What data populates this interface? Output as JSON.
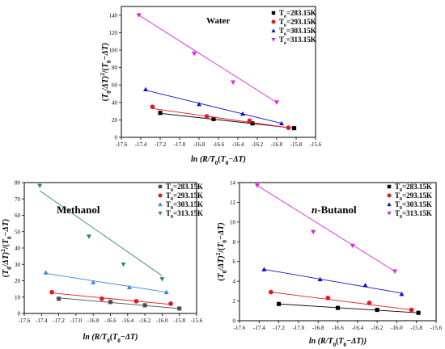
{
  "figure": {
    "panels": [
      "water",
      "methanol",
      "butanol"
    ]
  },
  "chart_data": [
    {
      "type": "scatter",
      "id": "water",
      "title": "Water",
      "xlabel": "ln (R/T0(T0−ΔT)",
      "ylabel": "(T0/ΔT)²/(T0−ΔT)",
      "xlim": [
        -17.6,
        -15.6
      ],
      "ylim": [
        0,
        150
      ],
      "x_ticks": [
        -17.6,
        -17.4,
        -17.2,
        -17.0,
        -16.8,
        -16.6,
        -16.4,
        -16.2,
        -16.0,
        -15.8,
        -15.6
      ],
      "x_tick_labels": [
        "-17.6",
        "-17.4",
        "-17.2",
        "-17.0",
        "-16.8",
        "-16.6",
        "-16.4",
        "-16.2",
        "-16.0",
        "-15.8",
        "-15.6"
      ],
      "y_ticks": [
        0,
        20,
        40,
        60,
        80,
        100,
        120,
        140
      ],
      "y_tick_labels": [
        "0",
        "20",
        "40",
        "60",
        "80",
        "100",
        "120",
        "140"
      ],
      "legend_position": "top-right",
      "grid": false,
      "series": [
        {
          "name": "T0=283.15K",
          "color": "#000000",
          "marker": "square",
          "x": [
            -17.2,
            -16.65,
            -16.25,
            -15.82
          ],
          "y": [
            28,
            21,
            16,
            10.5
          ],
          "fit": [
            [
              -17.2,
              27.5
            ],
            [
              -15.82,
              10.5
            ]
          ]
        },
        {
          "name": "T0=293.15K",
          "color": "#e8161c",
          "marker": "circle",
          "x": [
            -17.28,
            -16.72,
            -16.28,
            -15.88
          ],
          "y": [
            35,
            24,
            19,
            11
          ],
          "fit": [
            [
              -17.28,
              33
            ],
            [
              -15.88,
              11
            ]
          ]
        },
        {
          "name": "T0=303.15K",
          "color": "#1010d0",
          "marker": "triangle-up",
          "x": [
            -17.35,
            -16.8,
            -16.35,
            -15.95
          ],
          "y": [
            55,
            38,
            27,
            16
          ],
          "fit": [
            [
              -17.35,
              54
            ],
            [
              -15.95,
              16
            ]
          ]
        },
        {
          "name": "T0=313.15K",
          "color": "#e21ee2",
          "marker": "triangle-down",
          "x": [
            -17.42,
            -16.85,
            -16.45,
            -16.0
          ],
          "y": [
            140,
            96,
            63,
            40
          ],
          "fit": [
            [
              -17.42,
              140
            ],
            [
              -16.0,
              40
            ]
          ]
        }
      ]
    },
    {
      "type": "scatter",
      "id": "methanol",
      "title": "Methanol",
      "xlabel": "ln (R/T0(T0−ΔT)",
      "ylabel": "(T0/ΔT)²/(T0−ΔT)",
      "xlim": [
        -17.6,
        -15.6
      ],
      "ylim": [
        0,
        80
      ],
      "x_ticks": [
        -17.6,
        -17.4,
        -17.2,
        -17.0,
        -16.8,
        -16.6,
        -16.4,
        -16.2,
        -16.0,
        -15.8,
        -15.6
      ],
      "x_tick_labels": [
        "-17.6",
        "-17.4",
        "-17.2",
        "-17.0",
        "-16.8",
        "-16.6",
        "-16.4",
        "-16.2",
        "-16.0",
        "-15.8",
        "-15.6"
      ],
      "y_ticks": [
        0,
        10,
        20,
        30,
        40,
        50,
        60,
        70,
        80
      ],
      "y_tick_labels": [
        "0",
        "10",
        "20",
        "30",
        "40",
        "50",
        "60",
        "70",
        "80"
      ],
      "legend_position": "top-right",
      "grid": false,
      "series": [
        {
          "name": "T0=283.15K",
          "color": "#4d4d4d",
          "marker": "square",
          "x": [
            -17.2,
            -16.6,
            -16.2,
            -15.8
          ],
          "y": [
            9,
            7,
            5,
            3
          ],
          "fit": [
            [
              -17.2,
              9.5
            ],
            [
              -15.8,
              3
            ]
          ]
        },
        {
          "name": "T0=293.15K",
          "color": "#e8161c",
          "marker": "circle",
          "x": [
            -17.28,
            -16.7,
            -16.3,
            -15.9
          ],
          "y": [
            13,
            9,
            7.5,
            6
          ],
          "fit": [
            [
              -17.28,
              12.5
            ],
            [
              -15.9,
              5.5
            ]
          ]
        },
        {
          "name": "T0=303.15K",
          "color": "#3a87d6",
          "marker": "triangle-up",
          "x": [
            -17.35,
            -16.8,
            -16.38,
            -15.95
          ],
          "y": [
            25,
            19,
            16,
            13
          ],
          "fit": [
            [
              -17.35,
              24.5
            ],
            [
              -15.95,
              13
            ]
          ]
        },
        {
          "name": "T0=313.15K",
          "color": "#2e8b57",
          "marker": "triangle-down",
          "x": [
            -17.42,
            -16.85,
            -16.45,
            -16.0
          ],
          "y": [
            78,
            47,
            30,
            21
          ],
          "fit": [
            [
              -17.42,
              75
            ],
            [
              -16.0,
              23
            ]
          ]
        }
      ]
    },
    {
      "type": "scatter",
      "id": "butanol",
      "title": "n-Butanol",
      "xlabel": "ln (R/T0(T0−ΔT))",
      "ylabel": "(T0/ΔT)²/(T0−ΔT)",
      "xlim": [
        -17.6,
        -15.6
      ],
      "ylim": [
        0,
        14
      ],
      "x_ticks": [
        -17.6,
        -17.4,
        -17.2,
        -17.0,
        -16.8,
        -16.6,
        -16.4,
        -16.2,
        -16.0,
        -15.8,
        -15.6
      ],
      "x_tick_labels": [
        "-17.6",
        "-17.4",
        "-17.2",
        "-17.0",
        "-16.8",
        "-16.6",
        "-16.4",
        "-16.2",
        "-16.0",
        "-15.8",
        "-15.6"
      ],
      "y_ticks": [
        0,
        2,
        4,
        6,
        8,
        10,
        12,
        14
      ],
      "y_tick_labels": [
        "0",
        "2",
        "4",
        "6",
        "8",
        "10",
        "12",
        "14"
      ],
      "legend_position": "top-right",
      "grid": false,
      "series": [
        {
          "name": "T0=283.15K",
          "color": "#000000",
          "marker": "square",
          "x": [
            -17.2,
            -16.6,
            -16.2,
            -15.78
          ],
          "y": [
            1.7,
            1.3,
            1.1,
            0.8
          ],
          "fit": [
            [
              -17.2,
              1.7
            ],
            [
              -15.78,
              0.8
            ]
          ]
        },
        {
          "name": "T0=293.15K",
          "color": "#e8161c",
          "marker": "circle",
          "x": [
            -17.28,
            -16.7,
            -16.28,
            -15.85
          ],
          "y": [
            2.9,
            2.3,
            1.8,
            1.1
          ],
          "fit": [
            [
              -17.28,
              2.9
            ],
            [
              -15.85,
              1.1
            ]
          ]
        },
        {
          "name": "T0=303.15K",
          "color": "#1010d0",
          "marker": "triangle-up",
          "x": [
            -17.35,
            -16.78,
            -16.32,
            -15.95
          ],
          "y": [
            5.2,
            4.2,
            3.6,
            2.7
          ],
          "fit": [
            [
              -17.35,
              5.2
            ],
            [
              -15.95,
              2.8
            ]
          ]
        },
        {
          "name": "T0=313.15K",
          "color": "#e21ee2",
          "marker": "triangle-down",
          "x": [
            -17.42,
            -16.85,
            -16.45,
            -16.02
          ],
          "y": [
            13.7,
            9.0,
            7.6,
            5.0
          ],
          "fit": [
            [
              -17.42,
              13.7
            ],
            [
              -16.02,
              5.0
            ]
          ]
        }
      ]
    }
  ]
}
